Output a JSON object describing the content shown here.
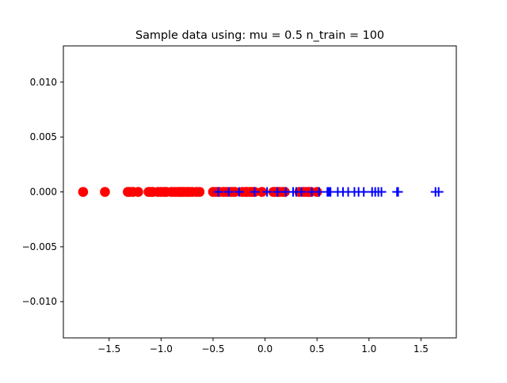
{
  "chart_data": {
    "type": "scatter",
    "title": "Sample data using: mu = 0.5 n_train = 100",
    "xlabel": "",
    "ylabel": "",
    "xlim": [
      -1.94,
      1.84
    ],
    "ylim": [
      -0.0133,
      0.0133
    ],
    "xticks": [
      -1.5,
      -1.0,
      -0.5,
      0.0,
      0.5,
      1.0,
      1.5
    ],
    "xtick_labels": [
      "−1.5",
      "−1.0",
      "−0.5",
      "0.0",
      "0.5",
      "1.0",
      "1.5"
    ],
    "yticks": [
      -0.01,
      -0.005,
      0.0,
      0.005,
      0.01
    ],
    "ytick_labels": [
      "−0.010",
      "−0.005",
      "0.000",
      "0.005",
      "0.010"
    ],
    "grid": false,
    "series": [
      {
        "marker": "circle",
        "color": "#ff0000",
        "x": [
          -1.75,
          -1.54,
          -1.32,
          -1.3,
          -1.27,
          -1.22,
          -1.12,
          -1.1,
          -1.08,
          -1.03,
          -1.0,
          -0.97,
          -0.95,
          -0.9,
          -0.87,
          -0.84,
          -0.82,
          -0.8,
          -0.78,
          -0.75,
          -0.73,
          -0.7,
          -0.66,
          -0.63,
          -0.5,
          -0.47,
          -0.44,
          -0.4,
          -0.37,
          -0.33,
          -0.31,
          -0.29,
          -0.22,
          -0.19,
          -0.17,
          -0.14,
          -0.12,
          -0.1,
          -0.03,
          0.08,
          0.1,
          0.12,
          0.14,
          0.17,
          0.19,
          0.33,
          0.37,
          0.4,
          0.42,
          0.44,
          0.5
        ],
        "y": [
          0,
          0,
          0,
          0,
          0,
          0,
          0,
          0,
          0,
          0,
          0,
          0,
          0,
          0,
          0,
          0,
          0,
          0,
          0,
          0,
          0,
          0,
          0,
          0,
          0,
          0,
          0,
          0,
          0,
          0,
          0,
          0,
          0,
          0,
          0,
          0,
          0,
          0,
          0,
          0,
          0,
          0,
          0,
          0,
          0,
          0,
          0,
          0,
          0,
          0,
          0
        ]
      },
      {
        "marker": "plus",
        "color": "#0000ff",
        "x": [
          -0.45,
          -0.35,
          -0.25,
          -0.1,
          0.02,
          0.12,
          0.2,
          0.27,
          0.3,
          0.35,
          0.45,
          0.52,
          0.6,
          0.61,
          0.62,
          0.63,
          0.7,
          0.75,
          0.8,
          0.86,
          0.9,
          0.95,
          1.03,
          1.06,
          1.09,
          1.12,
          1.27,
          1.28,
          1.64,
          1.67
        ],
        "y": [
          0,
          0,
          0,
          0,
          0,
          0,
          0,
          0,
          0,
          0,
          0,
          0,
          0,
          0,
          0,
          0,
          0,
          0,
          0,
          0,
          0,
          0,
          0,
          0,
          0,
          0,
          0,
          0,
          0,
          0
        ]
      }
    ]
  }
}
